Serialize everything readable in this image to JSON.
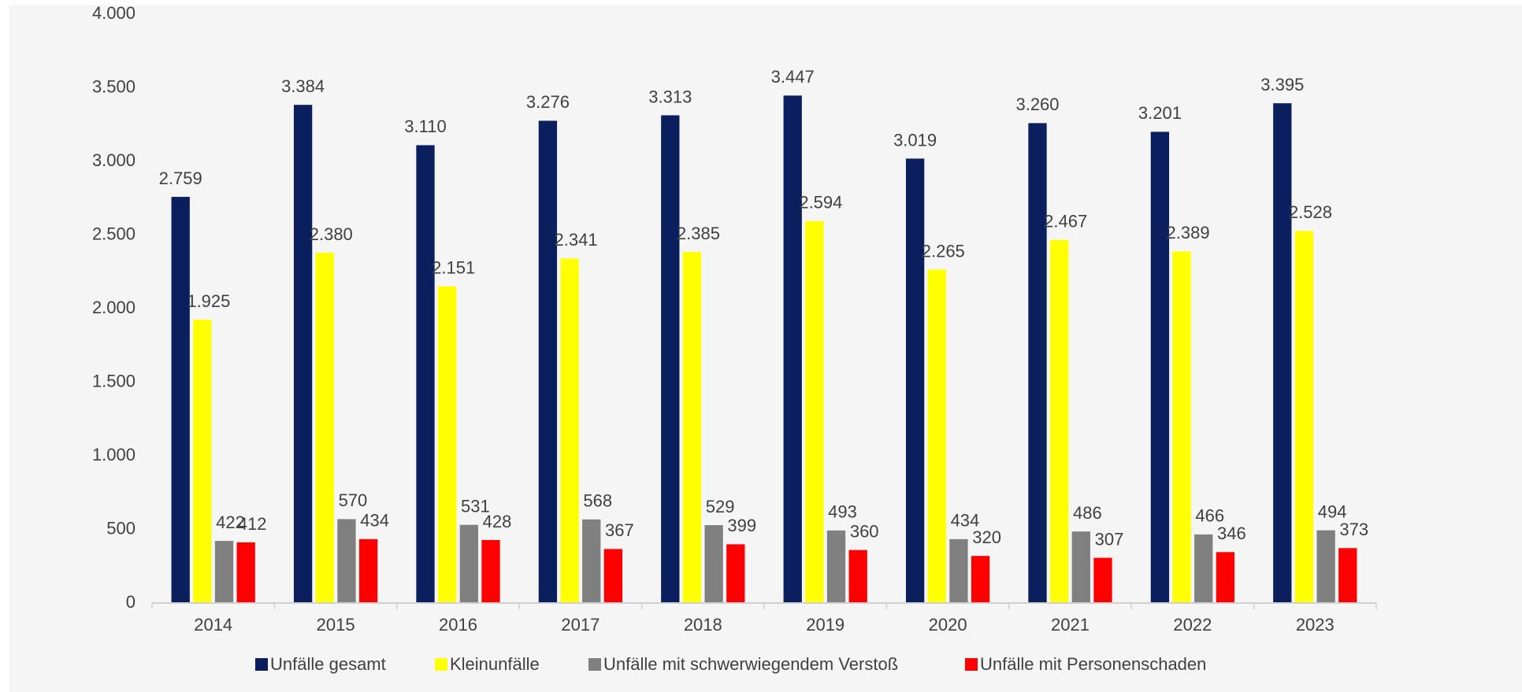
{
  "chart_data": {
    "type": "bar",
    "categories": [
      "2014",
      "2015",
      "2016",
      "2017",
      "2018",
      "2019",
      "2020",
      "2021",
      "2022",
      "2023"
    ],
    "series": [
      {
        "name": "Unfälle gesamt",
        "color": "#0b1f5e",
        "values": [
          2759,
          3384,
          3110,
          3276,
          3313,
          3447,
          3019,
          3260,
          3201,
          3395
        ],
        "value_labels": [
          "2.759",
          "3.384",
          "3.110",
          "3.276",
          "3.313",
          "3.447",
          "3.019",
          "3.260",
          "3.201",
          "3.395"
        ]
      },
      {
        "name": "Kleinunfälle",
        "color": "#ffff00",
        "values": [
          1925,
          2380,
          2151,
          2341,
          2385,
          2594,
          2265,
          2467,
          2389,
          2528
        ],
        "value_labels": [
          "1.925",
          "2.380",
          "2.151",
          "2.341",
          "2.385",
          "2.594",
          "2.265",
          "2.467",
          "2.389",
          "2.528"
        ]
      },
      {
        "name": "Unfälle mit schwerwiegendem Verstoß",
        "color": "#808080",
        "values": [
          422,
          570,
          531,
          568,
          529,
          493,
          434,
          486,
          466,
          494
        ]
      },
      {
        "name": "Unfälle mit Personenschaden",
        "color": "#ff0000",
        "values": [
          412,
          434,
          428,
          367,
          399,
          360,
          320,
          307,
          346,
          373
        ]
      }
    ],
    "ylim": [
      0,
      4000
    ],
    "yticks": [
      0,
      500,
      {
        "value": 1000,
        "label": "1.000"
      },
      {
        "value": 1500,
        "label": "1.500"
      },
      {
        "value": 2000,
        "label": "2.000"
      },
      {
        "value": 2500,
        "label": "2.500"
      },
      {
        "value": 3000,
        "label": "3.000"
      },
      {
        "value": 3500,
        "label": "3.500"
      },
      {
        "value": 4000,
        "label": "4.000"
      }
    ],
    "legend": "bottom"
  }
}
